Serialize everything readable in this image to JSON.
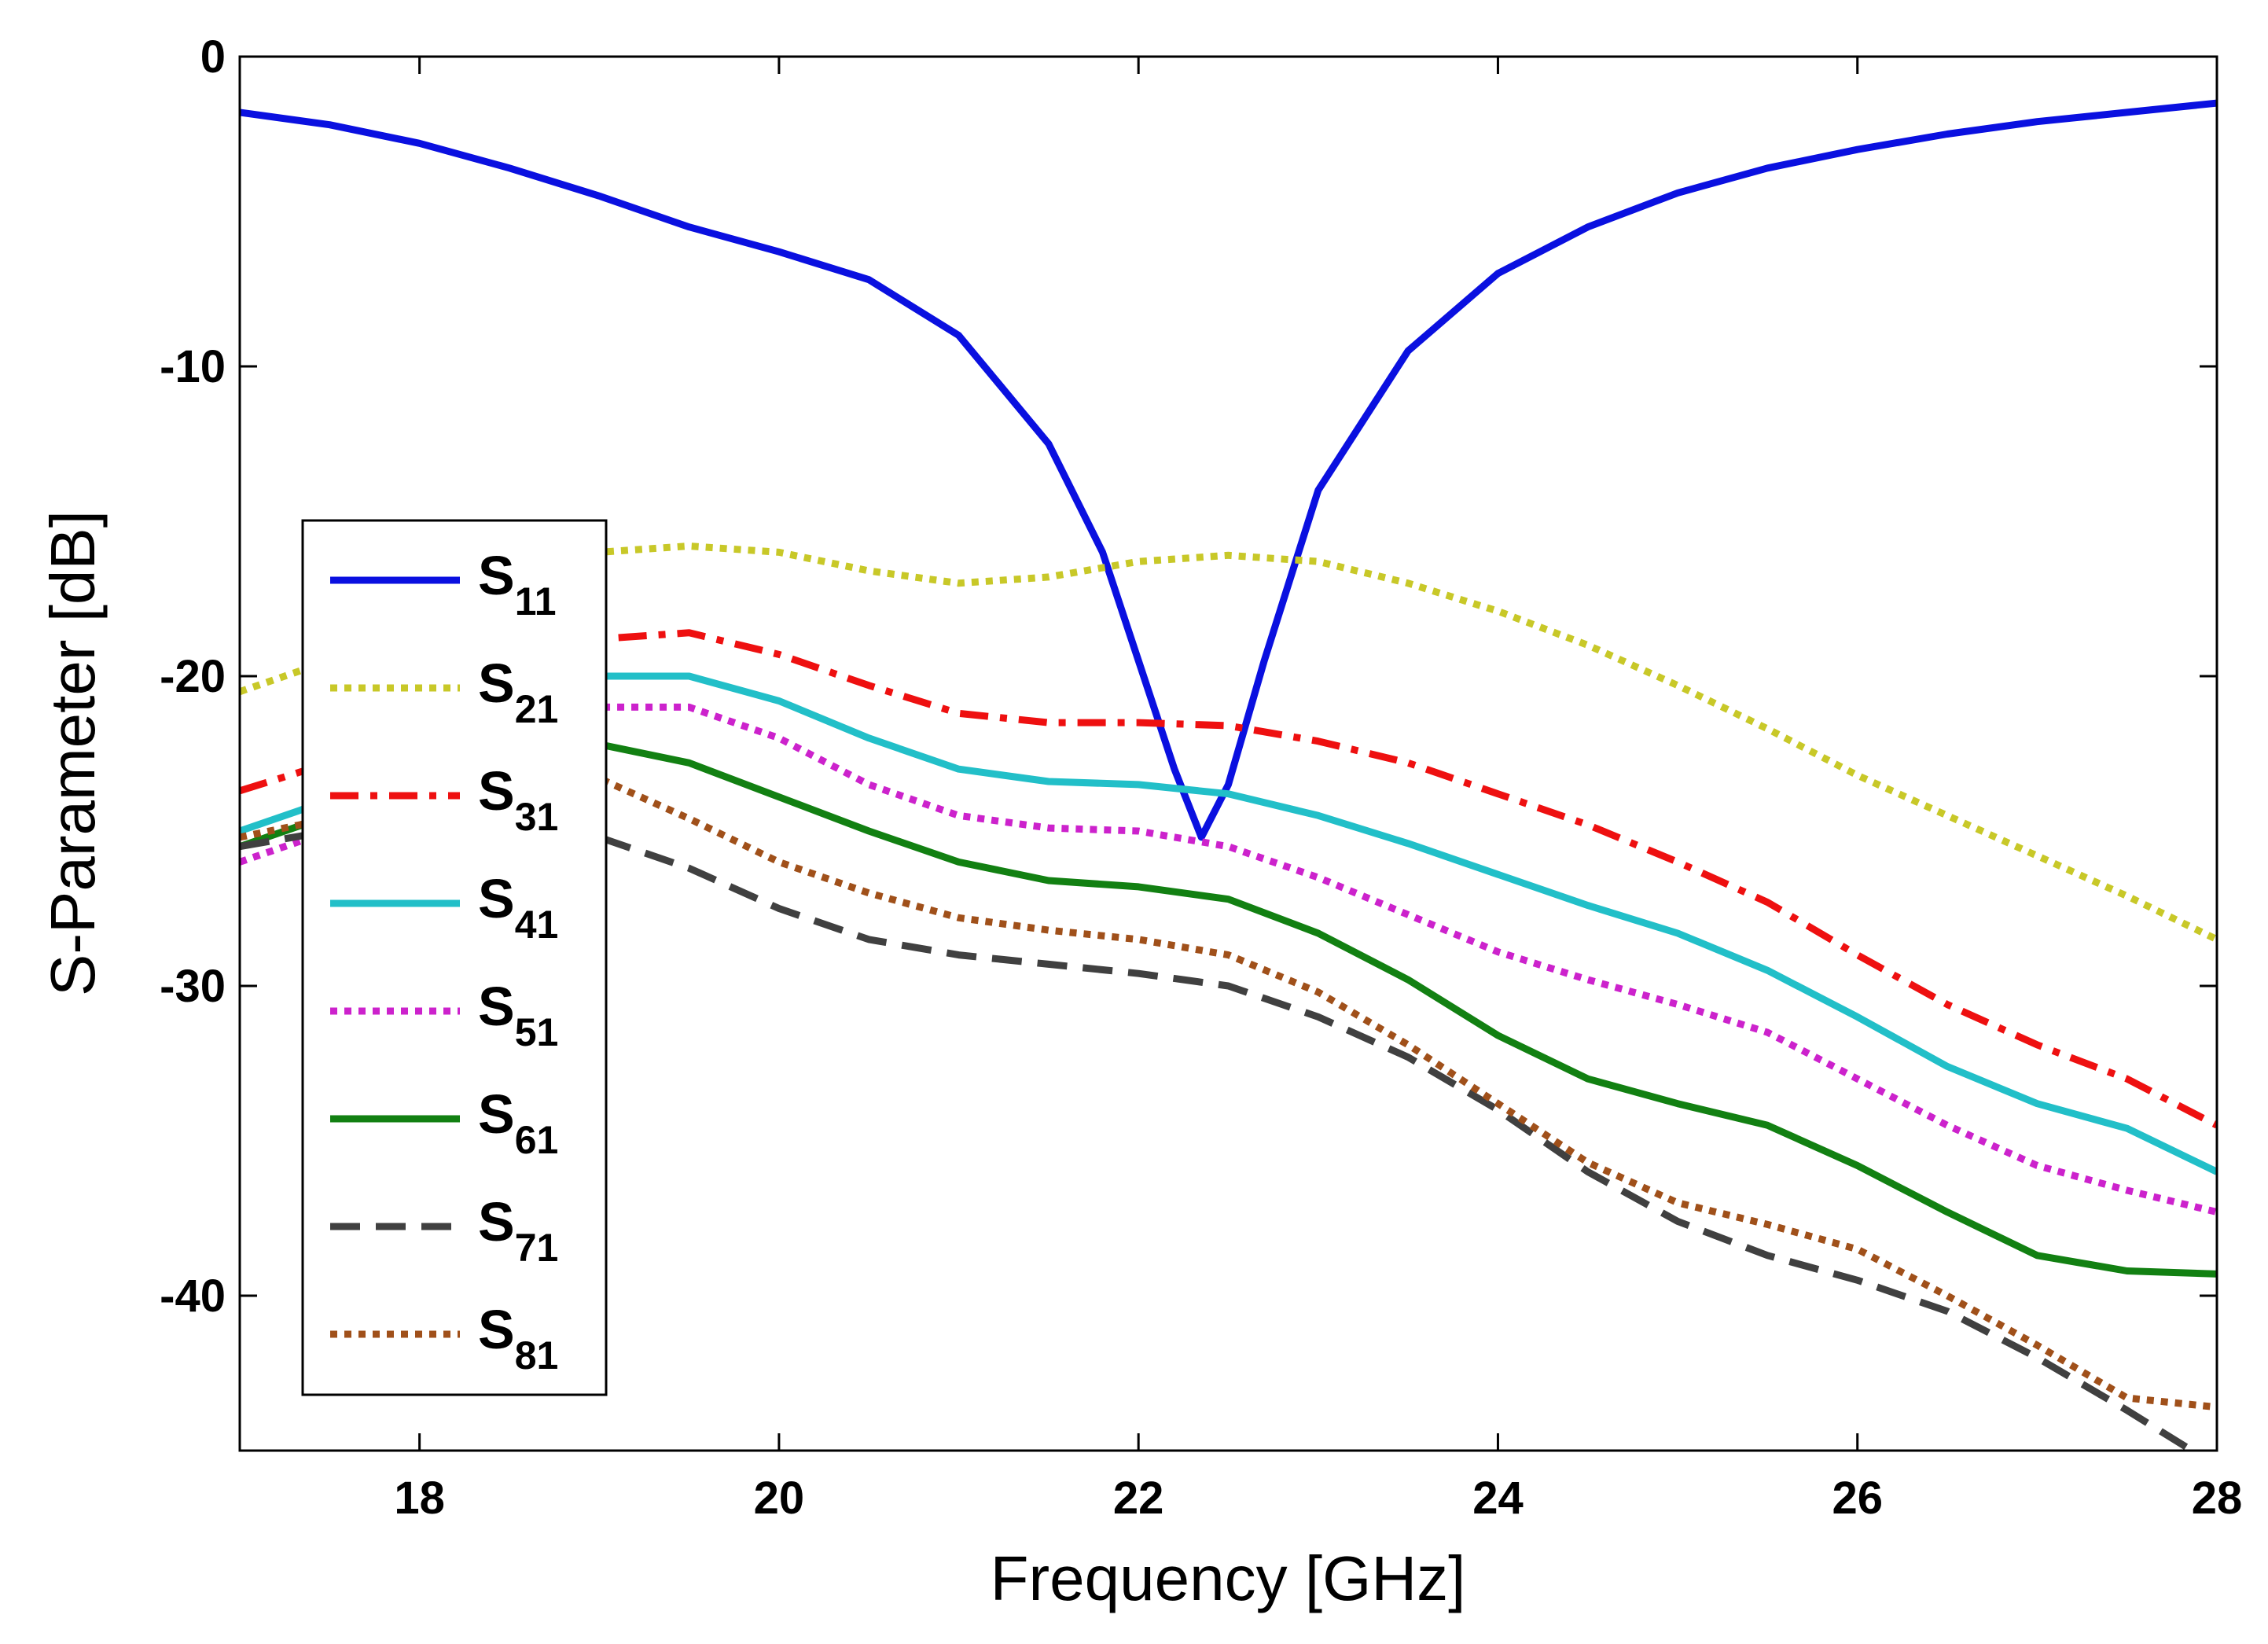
{
  "chart_data": {
    "type": "line",
    "title": "",
    "xlabel": "Frequency [GHz]",
    "ylabel": "S-Parameter [dB]",
    "xlim": [
      17,
      28
    ],
    "ylim": [
      -45,
      0
    ],
    "xticks": [
      18,
      20,
      22,
      24,
      26,
      28
    ],
    "yticks": [
      0,
      -10,
      -20,
      -30,
      -40
    ],
    "legend_position": "left-middle",
    "series": [
      {
        "name": "S11",
        "base": "S",
        "sub": "11",
        "color": "#0a10e0",
        "style": "solid",
        "x": [
          17,
          17.5,
          18,
          18.5,
          19,
          19.5,
          20,
          20.5,
          21,
          21.5,
          21.8,
          22,
          22.2,
          22.35,
          22.5,
          22.7,
          23,
          23.5,
          24,
          24.5,
          25,
          25.5,
          26,
          26.5,
          27,
          27.5,
          28
        ],
        "y": [
          -1.8,
          -2.2,
          -2.8,
          -3.6,
          -4.5,
          -5.5,
          -6.3,
          -7.2,
          -9.0,
          -12.5,
          -16.0,
          -19.5,
          -23.0,
          -25.2,
          -23.5,
          -19.5,
          -14.0,
          -9.5,
          -7.0,
          -5.5,
          -4.4,
          -3.6,
          -3.0,
          -2.5,
          -2.1,
          -1.8,
          -1.5
        ]
      },
      {
        "name": "S21",
        "base": "S",
        "sub": "21",
        "color": "#c8c828",
        "style": "dotted",
        "x": [
          17,
          17.5,
          18,
          18.5,
          19,
          19.5,
          20,
          20.5,
          21,
          21.5,
          22,
          22.5,
          23,
          23.5,
          24,
          24.5,
          25,
          25.5,
          26,
          26.5,
          27,
          27.5,
          28
        ],
        "y": [
          -20.5,
          -19.5,
          -18.0,
          -16.5,
          -16.0,
          -15.8,
          -16.0,
          -16.6,
          -17.0,
          -16.8,
          -16.3,
          -16.1,
          -16.3,
          -17.0,
          -17.9,
          -19.0,
          -20.3,
          -21.7,
          -23.2,
          -24.5,
          -25.8,
          -27.1,
          -28.5
        ]
      },
      {
        "name": "S31",
        "base": "S",
        "sub": "31",
        "color": "#ee1010",
        "style": "dashdot",
        "x": [
          17,
          17.5,
          18,
          18.5,
          19,
          19.5,
          20,
          20.5,
          21,
          21.5,
          22,
          22.5,
          23,
          23.5,
          24,
          24.5,
          25,
          25.5,
          26,
          26.5,
          27,
          27.5,
          28
        ],
        "y": [
          -23.7,
          -22.8,
          -21.0,
          -19.5,
          -18.8,
          -18.6,
          -19.3,
          -20.3,
          -21.2,
          -21.5,
          -21.5,
          -21.6,
          -22.1,
          -22.8,
          -23.8,
          -24.8,
          -26.0,
          -27.3,
          -29.0,
          -30.6,
          -31.9,
          -33.0,
          -34.5
        ]
      },
      {
        "name": "S41",
        "base": "S",
        "sub": "41",
        "color": "#22bfc8",
        "style": "solid",
        "x": [
          17,
          17.5,
          18,
          18.5,
          19,
          19.5,
          20,
          20.5,
          21,
          21.5,
          22,
          22.5,
          23,
          23.5,
          24,
          24.5,
          25,
          25.5,
          26,
          26.5,
          27,
          27.5,
          28
        ],
        "y": [
          -25.0,
          -24.0,
          -22.5,
          -21.0,
          -20.0,
          -20.0,
          -20.8,
          -22.0,
          -23.0,
          -23.4,
          -23.5,
          -23.8,
          -24.5,
          -25.4,
          -26.4,
          -27.4,
          -28.3,
          -29.5,
          -31.0,
          -32.6,
          -33.8,
          -34.6,
          -36.0
        ]
      },
      {
        "name": "S51",
        "base": "S",
        "sub": "51",
        "color": "#cc22cc",
        "style": "dotted",
        "x": [
          17,
          17.5,
          18,
          18.5,
          19,
          19.5,
          20,
          20.5,
          21,
          21.5,
          22,
          22.5,
          23,
          23.5,
          24,
          24.5,
          25,
          25.5,
          26,
          26.5,
          27,
          27.5,
          28
        ],
        "y": [
          -26.0,
          -25.0,
          -23.5,
          -22.0,
          -21.0,
          -21.0,
          -22.0,
          -23.5,
          -24.5,
          -24.9,
          -25.0,
          -25.5,
          -26.5,
          -27.7,
          -28.9,
          -29.8,
          -30.6,
          -31.5,
          -33.0,
          -34.5,
          -35.8,
          -36.6,
          -37.3
        ]
      },
      {
        "name": "S61",
        "base": "S",
        "sub": "61",
        "color": "#128012",
        "style": "solid",
        "x": [
          17,
          17.5,
          18,
          18.5,
          19,
          19.5,
          20,
          20.5,
          21,
          21.5,
          22,
          22.5,
          23,
          23.5,
          24,
          24.5,
          25,
          25.5,
          26,
          26.5,
          27,
          27.5,
          28
        ],
        "y": [
          -25.5,
          -24.5,
          -23.5,
          -22.5,
          -22.2,
          -22.8,
          -23.9,
          -25.0,
          -26.0,
          -26.6,
          -26.8,
          -27.2,
          -28.3,
          -29.8,
          -31.6,
          -33.0,
          -33.8,
          -34.5,
          -35.8,
          -37.3,
          -38.7,
          -39.2,
          -39.3
        ]
      },
      {
        "name": "S71",
        "base": "S",
        "sub": "71",
        "color": "#404040",
        "style": "dashed",
        "x": [
          17,
          17.5,
          18,
          18.5,
          19,
          19.5,
          20,
          20.5,
          21,
          21.5,
          22,
          22.5,
          23,
          23.5,
          24,
          24.5,
          25,
          25.5,
          26,
          26.5,
          27,
          27.5,
          28
        ],
        "y": [
          -25.5,
          -25.0,
          -24.8,
          -24.8,
          -25.2,
          -26.2,
          -27.5,
          -28.5,
          -29.0,
          -29.3,
          -29.6,
          -30.0,
          -31.0,
          -32.3,
          -34.0,
          -36.0,
          -37.6,
          -38.7,
          -39.5,
          -40.5,
          -42.0,
          -43.7,
          -45.5
        ]
      },
      {
        "name": "S81",
        "base": "S",
        "sub": "81",
        "color": "#a0501a",
        "style": "dotted",
        "x": [
          17,
          17.5,
          18,
          18.5,
          19,
          19.5,
          20,
          20.5,
          21,
          21.5,
          22,
          22.5,
          23,
          23.5,
          24,
          24.5,
          25,
          25.5,
          26,
          26.5,
          27,
          27.5,
          28
        ],
        "y": [
          -25.2,
          -24.6,
          -24.0,
          -23.5,
          -23.3,
          -24.6,
          -26.0,
          -27.0,
          -27.8,
          -28.2,
          -28.5,
          -29.0,
          -30.2,
          -31.9,
          -33.8,
          -35.7,
          -37.0,
          -37.7,
          -38.5,
          -40.0,
          -41.6,
          -43.3,
          -43.6
        ]
      }
    ]
  }
}
